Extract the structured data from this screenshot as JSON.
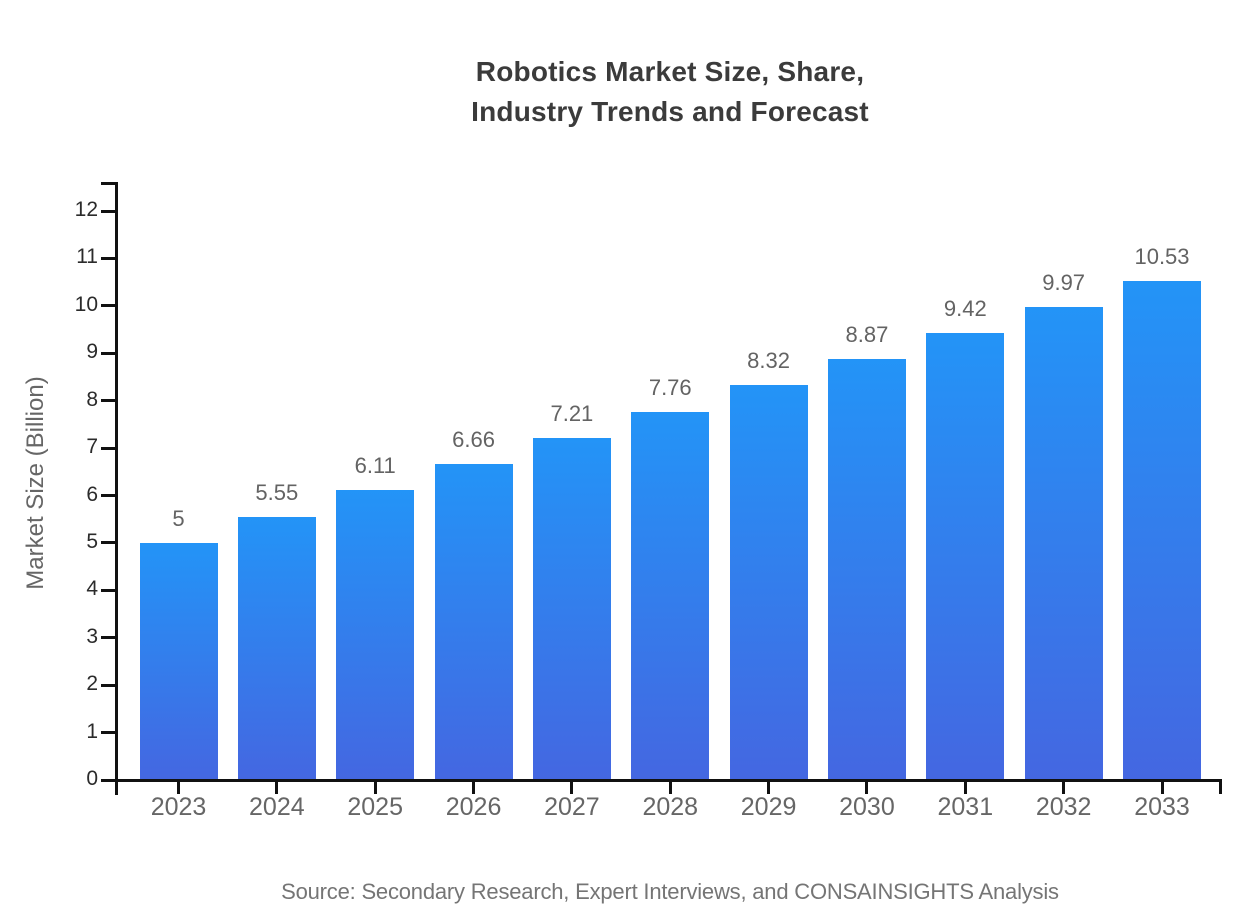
{
  "title": {
    "line1": "Robotics Market Size, Share,",
    "line2": "Industry Trends and Forecast"
  },
  "source_note": "Source: Secondary Research, Expert Interviews, and CONSAINSIGHTS Analysis",
  "chart_data": {
    "type": "bar",
    "title": "Robotics Market Size, Share, Industry Trends and Forecast",
    "categories": [
      "2023",
      "2024",
      "2025",
      "2026",
      "2027",
      "2028",
      "2029",
      "2030",
      "2031",
      "2032",
      "2033"
    ],
    "values": [
      5,
      5.55,
      6.11,
      6.66,
      7.21,
      7.76,
      8.32,
      8.87,
      9.42,
      9.97,
      10.53
    ],
    "value_labels": [
      "5",
      "5.55",
      "6.11",
      "6.66",
      "7.21",
      "7.76",
      "8.32",
      "8.87",
      "9.42",
      "9.97",
      "10.53"
    ],
    "xlabel": "",
    "ylabel": "Market Size (Billion)",
    "ylim": [
      0,
      12.6
    ],
    "yticks": [
      0,
      1,
      2,
      3,
      4,
      5,
      6,
      7,
      8,
      9,
      10,
      11,
      12
    ],
    "grid": false,
    "legend": null,
    "bar_labels_shown": true
  },
  "colors": {
    "bar_gradient_top": "#2394f7",
    "bar_gradient_bottom": "#4467e1",
    "axis": "#111111",
    "y_tick_label": "#2b2b2b",
    "x_tick_label": "#666666",
    "value_label": "#636363",
    "title": "#3b3b3b",
    "source": "#757575",
    "background": "#ffffff"
  }
}
